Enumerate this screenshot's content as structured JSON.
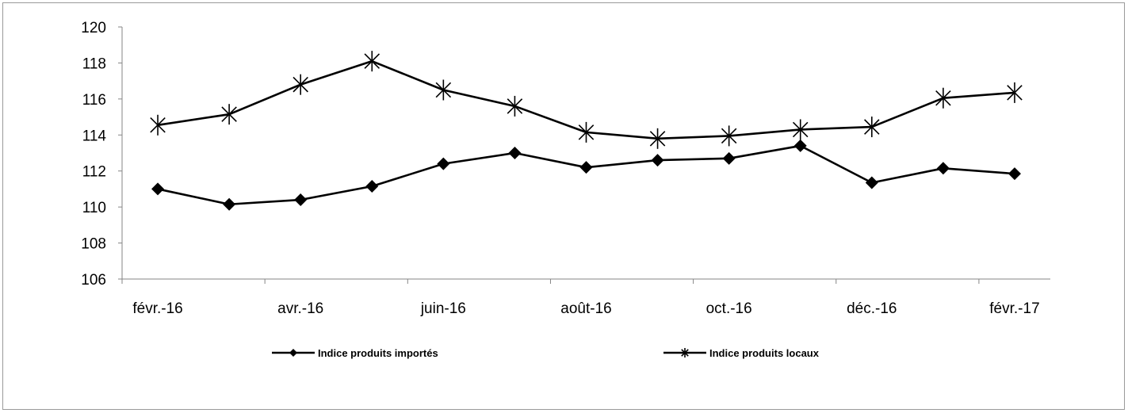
{
  "chart_data": {
    "type": "line",
    "title": "",
    "xlabel": "",
    "ylabel": "",
    "ylim": [
      106,
      120
    ],
    "yticks": [
      "106",
      "108",
      "110",
      "112",
      "114",
      "116",
      "118",
      "120"
    ],
    "xtick_labels": [
      "févr.-16",
      "avr.-16",
      "juin-16",
      "août-16",
      "oct.-16",
      "déc.-16",
      "févr.-17"
    ],
    "x": [
      "févr.-16",
      "mars-16",
      "avr.-16",
      "mai-16",
      "juin-16",
      "juil.-16",
      "août-16",
      "sept.-16",
      "oct.-16",
      "nov.-16",
      "déc.-16",
      "janv.-17",
      "févr.-17"
    ],
    "grid": false,
    "legend_position": "bottom",
    "series": [
      {
        "name": "Indice produits importés",
        "marker": "diamond",
        "color": "#000000",
        "values": [
          111.0,
          110.15,
          110.4,
          111.15,
          112.4,
          113.0,
          112.2,
          112.6,
          112.7,
          113.4,
          111.35,
          112.15,
          111.85
        ]
      },
      {
        "name": "Indice produits locaux",
        "marker": "asterisk",
        "color": "#000000",
        "values": [
          114.55,
          115.15,
          116.8,
          118.1,
          116.5,
          115.6,
          114.15,
          113.8,
          113.95,
          114.3,
          114.45,
          116.05,
          116.35
        ]
      }
    ]
  }
}
